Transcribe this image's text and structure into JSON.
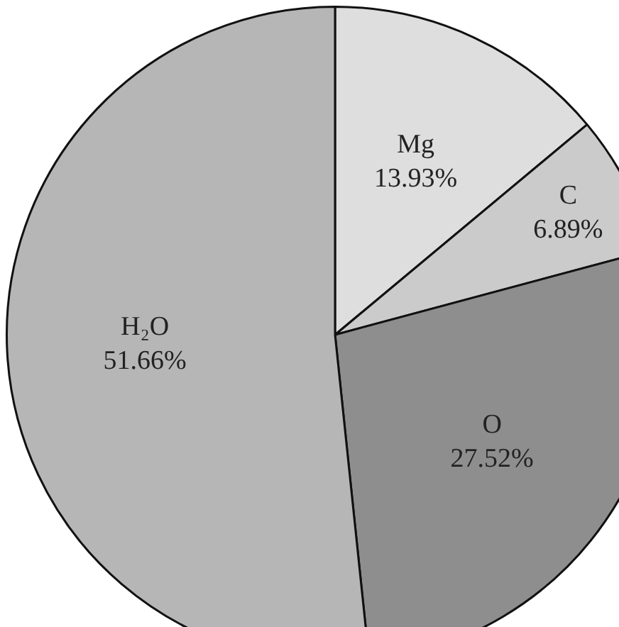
{
  "chart_data": {
    "type": "pie",
    "categories": [
      "Mg",
      "C",
      "O",
      "H₂O"
    ],
    "values": [
      13.93,
      6.89,
      27.52,
      51.66
    ],
    "value_labels": [
      "13.93%",
      "6.89%",
      "27.52%",
      "51.66%"
    ],
    "colors": [
      "#dedede",
      "#cbcbcb",
      "#8e8e8e",
      "#b6b6b6"
    ],
    "legend": false
  }
}
